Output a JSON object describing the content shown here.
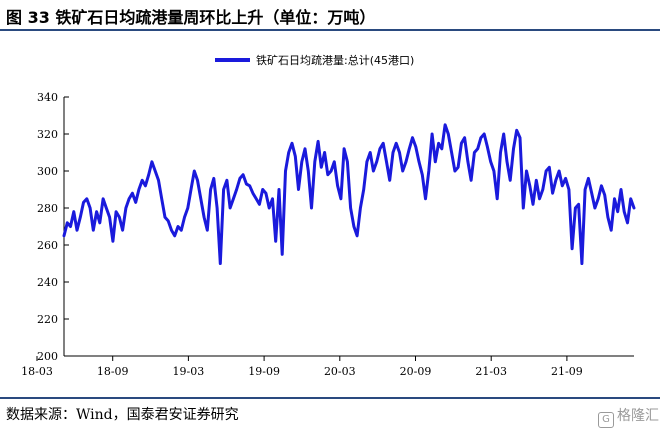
{
  "header": {
    "title": "图 33 铁矿石日均疏港量周环比上升（单位：万吨）"
  },
  "footer": {
    "source": "数据来源：Wind，国泰君安证券研究",
    "watermark": "格隆汇"
  },
  "colors": {
    "series": "#1a1adc",
    "rule": "#2a4a7f"
  },
  "chart_data": {
    "type": "line",
    "title": "",
    "xlabel": "",
    "ylabel": "",
    "ylim": [
      200,
      340
    ],
    "yticks": [
      200,
      220,
      240,
      260,
      280,
      300,
      320,
      340
    ],
    "xticks": [
      "18-03",
      "18-09",
      "19-03",
      "19-09",
      "20-03",
      "20-09",
      "21-03",
      "21-09"
    ],
    "legend_position": "top-center",
    "grid": false,
    "series": [
      {
        "name": "铁矿石日均疏港量:总计(45港口)",
        "x_range": [
          "18-03",
          "21-11"
        ],
        "values": [
          265,
          272,
          270,
          278,
          268,
          275,
          283,
          285,
          280,
          268,
          278,
          272,
          285,
          280,
          275,
          262,
          278,
          275,
          268,
          280,
          285,
          288,
          283,
          290,
          295,
          292,
          298,
          305,
          300,
          295,
          285,
          275,
          273,
          268,
          265,
          270,
          268,
          275,
          280,
          290,
          300,
          295,
          285,
          275,
          268,
          290,
          296,
          280,
          250,
          290,
          295,
          280,
          285,
          290,
          296,
          298,
          293,
          292,
          288,
          285,
          282,
          290,
          288,
          280,
          285,
          262,
          290,
          255,
          300,
          310,
          315,
          308,
          290,
          305,
          312,
          300,
          280,
          305,
          316,
          302,
          310,
          298,
          300,
          305,
          292,
          285,
          312,
          305,
          280,
          270,
          265,
          280,
          290,
          305,
          310,
          300,
          305,
          312,
          315,
          305,
          295,
          310,
          315,
          310,
          300,
          305,
          312,
          318,
          313,
          305,
          298,
          285,
          300,
          320,
          305,
          315,
          312,
          325,
          320,
          310,
          300,
          302,
          315,
          318,
          305,
          295,
          310,
          312,
          318,
          320,
          313,
          305,
          300,
          285,
          310,
          320,
          305,
          295,
          312,
          322,
          318,
          280,
          300,
          292,
          282,
          295,
          285,
          290,
          300,
          302,
          288,
          295,
          300,
          292,
          296,
          290,
          258,
          280,
          282,
          250,
          290,
          296,
          288,
          280,
          285,
          292,
          287,
          275,
          268,
          285,
          278,
          290,
          278,
          272,
          285,
          280
        ]
      }
    ]
  }
}
